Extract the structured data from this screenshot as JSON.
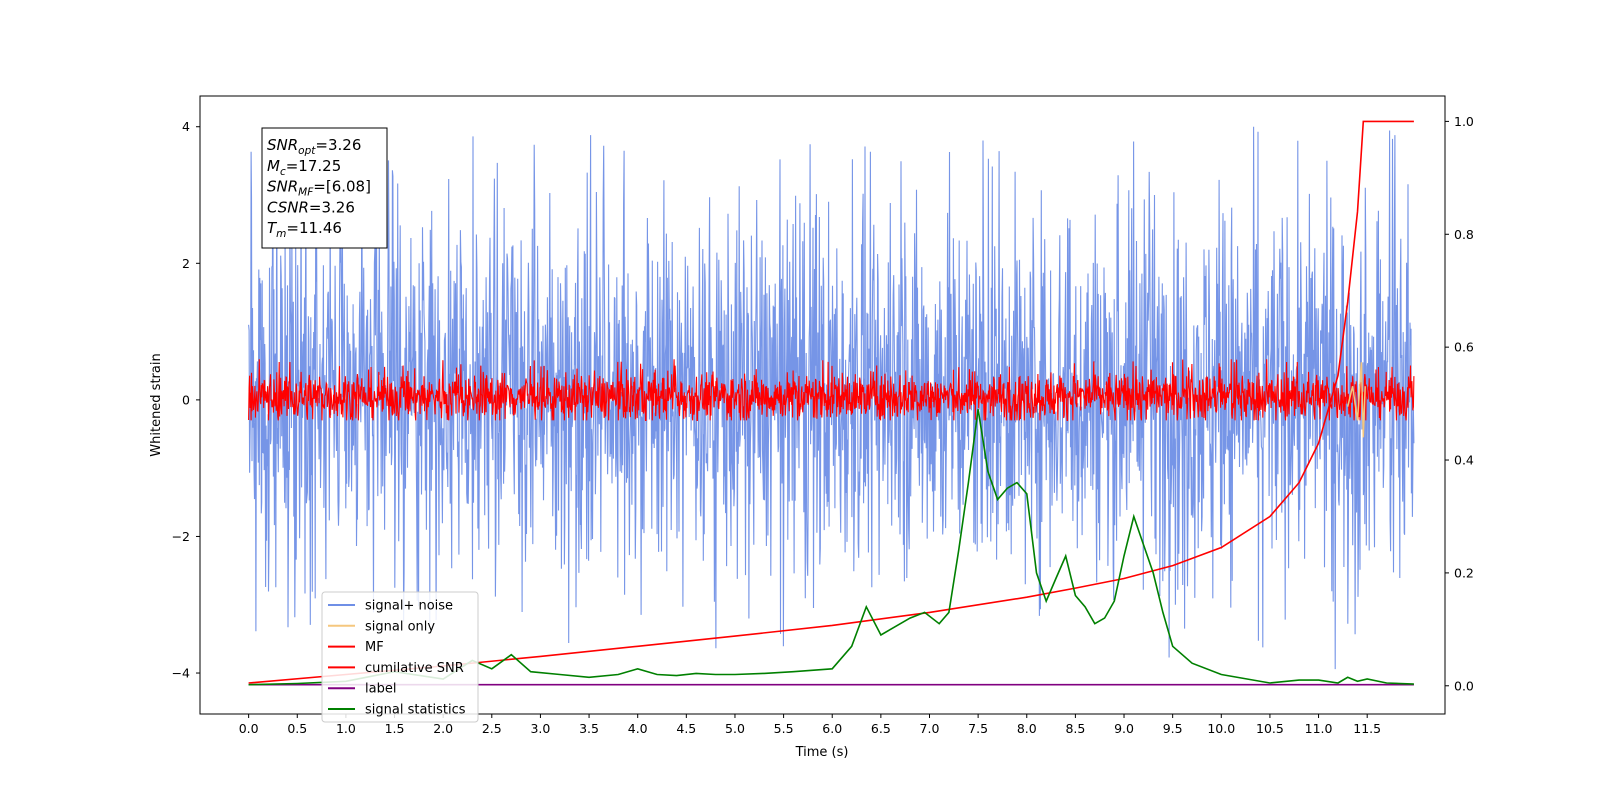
{
  "chart_data": {
    "type": "line",
    "title": "",
    "xlabel": "Time (s)",
    "ylabel_left": "Whitened strain",
    "ylabel_right": "",
    "xlim": [
      -0.5,
      12.3
    ],
    "ylim_left": [
      -4.6,
      4.45
    ],
    "ylim_right": [
      -0.05,
      1.045
    ],
    "x_ticks": [
      0.0,
      0.5,
      1.0,
      1.5,
      2.0,
      2.5,
      3.0,
      3.5,
      4.0,
      4.5,
      5.0,
      5.5,
      6.0,
      6.5,
      7.0,
      7.5,
      8.0,
      8.5,
      9.0,
      9.5,
      10.0,
      10.5,
      11.0,
      11.5
    ],
    "x_tick_labels": [
      "0.0",
      "0.5",
      "1.0",
      "1.5",
      "2.0",
      "2.5",
      "3.0",
      "3.5",
      "4.0",
      "4.5",
      "5.0",
      "5.5",
      "6.0",
      "6.5",
      "7.0",
      "7.5",
      "8.0",
      "8.5",
      "9.0",
      "9.5",
      "10.0",
      "10.5",
      "11.0",
      "11.5"
    ],
    "y_left_ticks": [
      -4,
      -2,
      0,
      2,
      4
    ],
    "y_left_tick_labels": [
      "−4",
      "−2",
      "0",
      "2",
      "4"
    ],
    "y_right_ticks": [
      0.0,
      0.2,
      0.4,
      0.6,
      0.8,
      1.0
    ],
    "y_right_tick_labels": [
      "0.0",
      "0.2",
      "0.4",
      "0.6",
      "0.8",
      "1.0"
    ],
    "grid": false,
    "legend_position": "lower-left",
    "series": [
      {
        "name": "signal+ noise",
        "axis": "left",
        "color": "#6f8fe6",
        "kind": "noise",
        "x_range": [
          0.0,
          11.98
        ],
        "typical_range": [
          -1.6,
          1.9
        ],
        "max": 4.0,
        "min": -4.2
      },
      {
        "name": "signal only",
        "axis": "left",
        "color": "#f5c77e",
        "kind": "chirp",
        "x": [
          11.3,
          11.35,
          11.4,
          11.44,
          11.46,
          11.48
        ],
        "y": [
          -0.1,
          0.2,
          -0.3,
          0.55,
          -0.55,
          0.2
        ]
      },
      {
        "name": "MF",
        "axis": "left",
        "color": "#ff0000",
        "kind": "noise",
        "x_range": [
          0.0,
          11.98
        ],
        "typical_range": [
          -0.25,
          0.35
        ],
        "max": 0.6,
        "min": -0.3
      },
      {
        "name": "cumilative SNR",
        "axis": "right",
        "color": "#ff0000",
        "x": [
          0.0,
          1.0,
          2.0,
          3.0,
          4.0,
          5.0,
          6.0,
          7.0,
          8.0,
          8.5,
          9.0,
          9.5,
          10.0,
          10.5,
          10.8,
          11.0,
          11.2,
          11.3,
          11.4,
          11.46,
          11.98
        ],
        "y": [
          0.005,
          0.02,
          0.035,
          0.052,
          0.07,
          0.088,
          0.107,
          0.13,
          0.157,
          0.173,
          0.19,
          0.213,
          0.245,
          0.3,
          0.36,
          0.43,
          0.55,
          0.68,
          0.84,
          1.0,
          1.0
        ]
      },
      {
        "name": "label",
        "axis": "right",
        "color": "#800080",
        "x": [
          0.0,
          11.98
        ],
        "y": [
          0.002,
          0.002
        ]
      },
      {
        "name": "signal statistics",
        "axis": "right",
        "color": "#008000",
        "x": [
          0.0,
          0.5,
          1.0,
          1.5,
          2.0,
          2.3,
          2.5,
          2.7,
          2.9,
          3.2,
          3.5,
          3.8,
          4.0,
          4.2,
          4.4,
          4.6,
          4.8,
          5.0,
          5.3,
          5.6,
          6.0,
          6.2,
          6.35,
          6.5,
          6.6,
          6.8,
          6.95,
          7.1,
          7.2,
          7.3,
          7.4,
          7.5,
          7.6,
          7.7,
          7.8,
          7.9,
          8.0,
          8.1,
          8.2,
          8.3,
          8.4,
          8.5,
          8.6,
          8.7,
          8.8,
          8.9,
          9.0,
          9.1,
          9.2,
          9.3,
          9.4,
          9.5,
          9.7,
          10.0,
          10.5,
          10.8,
          11.0,
          11.2,
          11.3,
          11.4,
          11.5,
          11.7,
          11.98
        ],
        "y": [
          0.002,
          0.004,
          0.008,
          0.025,
          0.012,
          0.045,
          0.03,
          0.055,
          0.025,
          0.02,
          0.015,
          0.02,
          0.03,
          0.02,
          0.018,
          0.022,
          0.02,
          0.02,
          0.022,
          0.025,
          0.03,
          0.07,
          0.14,
          0.09,
          0.1,
          0.12,
          0.13,
          0.11,
          0.13,
          0.24,
          0.36,
          0.49,
          0.38,
          0.33,
          0.35,
          0.36,
          0.34,
          0.2,
          0.15,
          0.19,
          0.23,
          0.16,
          0.14,
          0.11,
          0.12,
          0.15,
          0.23,
          0.3,
          0.25,
          0.2,
          0.13,
          0.07,
          0.04,
          0.02,
          0.005,
          0.01,
          0.01,
          0.005,
          0.015,
          0.008,
          0.012,
          0.005,
          0.003
        ]
      }
    ],
    "annotation_box": {
      "lines": [
        {
          "main": "SNR",
          "sub": "opt",
          "value": "=3.26"
        },
        {
          "main": "M",
          "sub": "c",
          "value": "=17.25"
        },
        {
          "main": "SNR",
          "sub": "MF",
          "value": "=[6.08]"
        },
        {
          "main": "CSNR",
          "sub": "",
          "value": "=3.26"
        },
        {
          "main": "T",
          "sub": "m",
          "value": "=11.46"
        }
      ]
    }
  }
}
